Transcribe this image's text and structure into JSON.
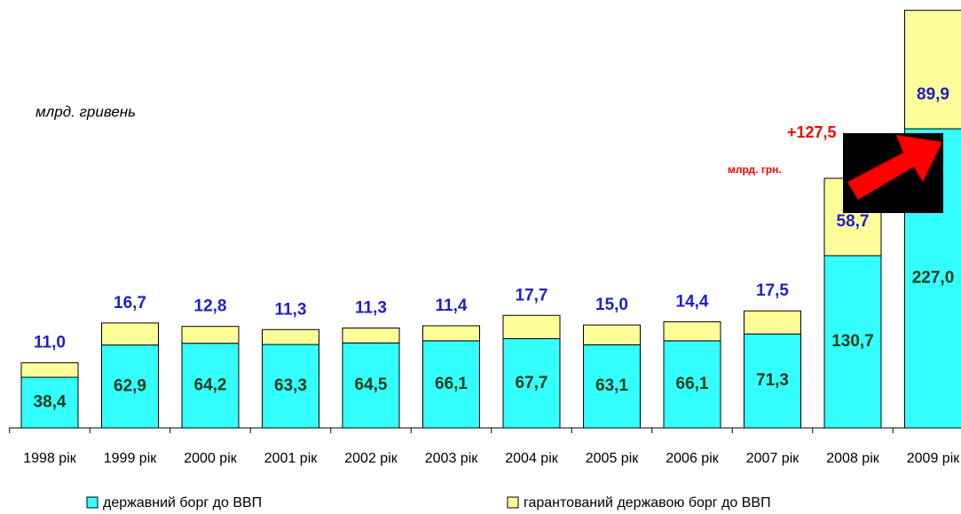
{
  "chart_data": {
    "type": "stacked_bar",
    "subtitle": "млрд. гривень",
    "annotations": [
      "+127,5",
      "млрд. грн."
    ],
    "categories": [
      "1998 рік",
      "1999 рік",
      "2000 рік",
      "2001 рік",
      "2002 рік",
      "2003 рік",
      "2004 рік",
      "2005 рік",
      "2006 рік",
      "2007 рік",
      "2008 рік",
      "2009 рік"
    ],
    "series": [
      {
        "name": "державний борг до ВВП",
        "color": "#33ffff",
        "values": [
          38.4,
          62.9,
          64.2,
          63.3,
          64.5,
          66.1,
          67.7,
          63.1,
          66.1,
          71.3,
          130.7,
          227.0
        ],
        "value_labels": [
          "38,4",
          "62,9",
          "64,2",
          "63,3",
          "64,5",
          "66,1",
          "67,7",
          "63,1",
          "66,1",
          "71,3",
          "130,7",
          "227,0"
        ]
      },
      {
        "name": "гарантований державою борг до ВВП",
        "color": "#ffff99",
        "values": [
          11.0,
          16.7,
          12.8,
          11.3,
          11.3,
          11.4,
          17.7,
          15.0,
          14.4,
          17.5,
          58.7,
          89.9
        ],
        "value_labels": [
          "11,0",
          "16,7",
          "12,8",
          "11,3",
          "11,3",
          "11,4",
          "17,7",
          "15,0",
          "14,4",
          "17,5",
          "58,7",
          "89,9"
        ]
      }
    ],
    "ylim": [
      0,
      320
    ]
  }
}
